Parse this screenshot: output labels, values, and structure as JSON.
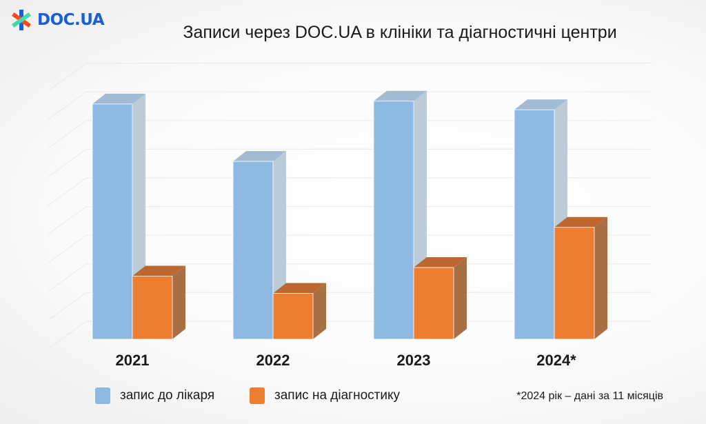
{
  "logo": {
    "text": "DOC.UA"
  },
  "chart_data": {
    "type": "bar",
    "style": "3d-column",
    "title": "Записи через DOC.UA в клініки та діагностичні центри",
    "categories": [
      "2021",
      "2022",
      "2023",
      "2024*"
    ],
    "series": [
      {
        "name": "запис до лікаря",
        "color": "#8cb8e2",
        "values": [
          8.2,
          6.2,
          8.3,
          8.0
        ]
      },
      {
        "name": "запис на діагностику",
        "color": "#ed7d31",
        "values": [
          2.2,
          1.6,
          2.5,
          3.9
        ]
      }
    ],
    "ylim": [
      0,
      9
    ],
    "y_tick_labels_shown": false,
    "grid": true,
    "legend": "bottom-left",
    "footnote": "*2024 рік – дані за 11 місяців"
  }
}
